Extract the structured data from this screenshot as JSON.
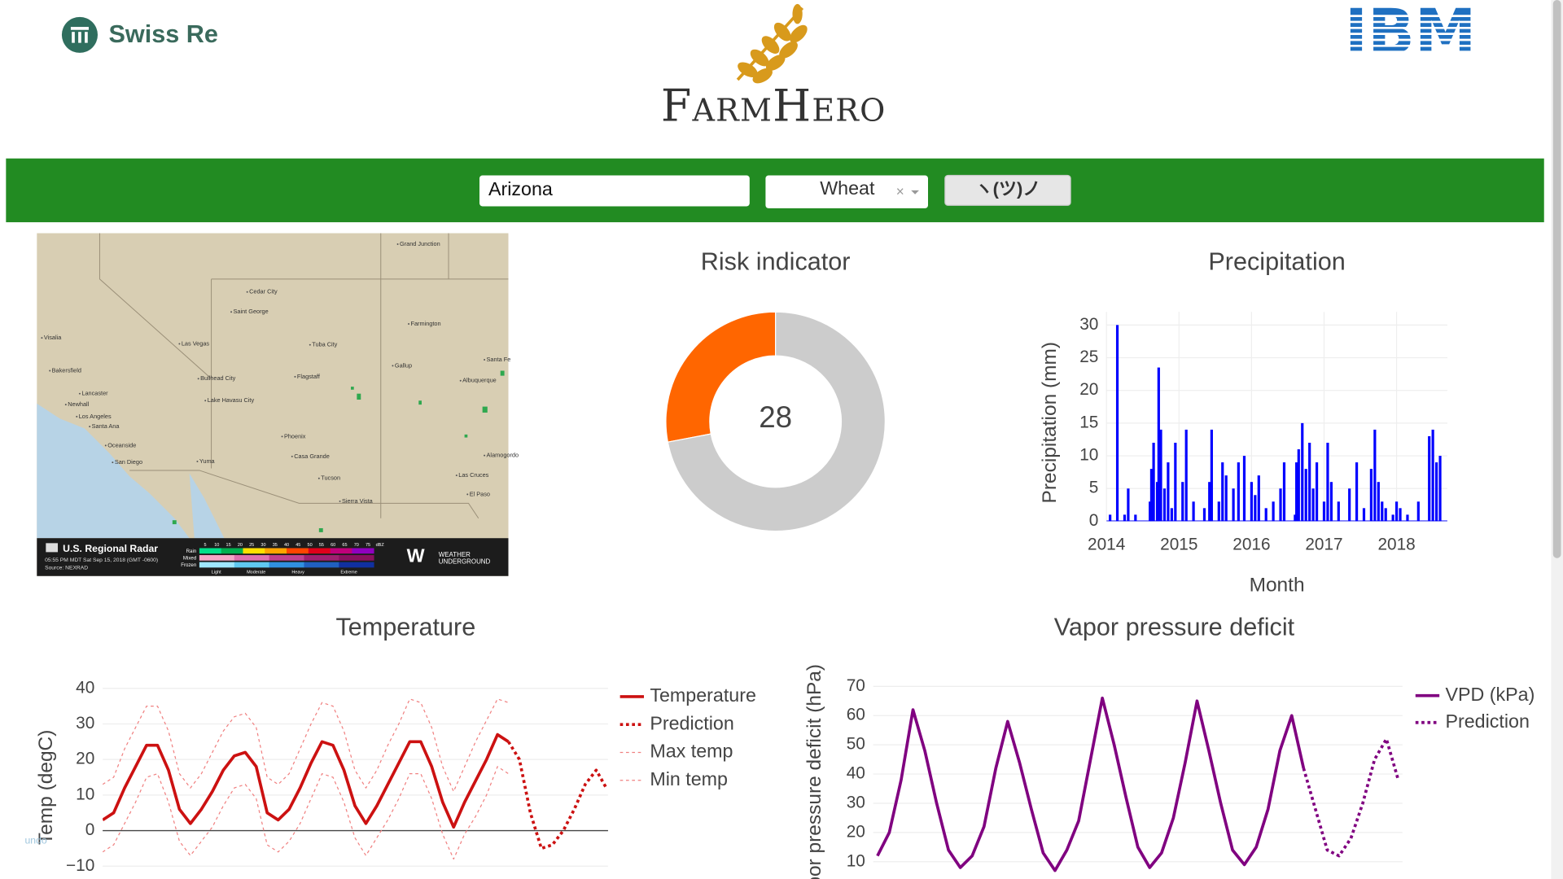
{
  "header": {
    "left_logo": "Swiss Re",
    "center_logo": "FarmHero",
    "right_logo": "IBM"
  },
  "controls": {
    "location": "Arizona",
    "crop": "Wheat",
    "clear": "×",
    "button": "ヽ(ツ)ノ"
  },
  "map": {
    "cities": [
      "Grand Junction",
      "Cedar City",
      "Saint George",
      "Farmington",
      "Las Vegas",
      "Tuba City",
      "Visalia",
      "Gallup",
      "Santa Fe",
      "Bakersfield",
      "Bullhead City",
      "Flagstaff",
      "Albuquerque",
      "Lancaster",
      "Lake Havasu City",
      "Newhall",
      "Los Angeles",
      "Santa Ana",
      "Phoenix",
      "Oceanside",
      "San Diego",
      "Yuma",
      "Casa Grande",
      "Alamogordo",
      "Tucson",
      "Las Cruces",
      "El Paso",
      "Sierra Vista"
    ],
    "legend_title": "U.S. Regional Radar",
    "timestamp": "05:55 PM MDT Sat Sep 15, 2018 (GMT -0600)",
    "source": "Source: NEXRAD",
    "rows": [
      "Rain",
      "Mixed",
      "Frozen"
    ],
    "scale": [
      5,
      10,
      15,
      20,
      25,
      30,
      35,
      40,
      45,
      50,
      55,
      60,
      65,
      70,
      75
    ],
    "scale_unit": "dBZ",
    "intensity": [
      "Light",
      "Moderate",
      "Heavy",
      "Extreme"
    ],
    "brand": [
      "WEATHER",
      "UNDERGROUND"
    ]
  },
  "undo": "undo",
  "chart_data": [
    {
      "type": "pie",
      "title": "Risk indicator",
      "values": [
        28,
        72
      ],
      "colors": [
        "#ff6600",
        "#cccccc"
      ],
      "hole": 0.6,
      "direction": "counterclockwise"
    },
    {
      "type": "bar",
      "title": "Precipitation",
      "x_label": "Month",
      "y_label": "Precipitation (mm)",
      "color": "#0000ff",
      "grid": true,
      "x": [
        2014.05,
        2014.15,
        2014.25,
        2014.3,
        2014.4,
        2014.6,
        2014.62,
        2014.65,
        2014.7,
        2014.72,
        2014.75,
        2014.8,
        2014.85,
        2014.9,
        2014.95,
        2015.05,
        2015.1,
        2015.2,
        2015.35,
        2015.42,
        2015.45,
        2015.55,
        2015.6,
        2015.65,
        2015.75,
        2015.82,
        2015.9,
        2016.0,
        2016.05,
        2016.1,
        2016.2,
        2016.3,
        2016.4,
        2016.45,
        2016.6,
        2016.62,
        2016.65,
        2016.7,
        2016.75,
        2016.8,
        2016.85,
        2016.9,
        2017.0,
        2017.05,
        2017.1,
        2017.2,
        2017.35,
        2017.45,
        2017.55,
        2017.65,
        2017.7,
        2017.75,
        2017.8,
        2017.85,
        2017.95,
        2018.0,
        2018.05,
        2018.15,
        2018.3,
        2018.45,
        2018.5,
        2018.55,
        2018.6
      ],
      "values": [
        1,
        30,
        1,
        5,
        1,
        3,
        8,
        12,
        6,
        23.5,
        14,
        5,
        9,
        2,
        12,
        6,
        14,
        3,
        2,
        6,
        14,
        3,
        9,
        7,
        5,
        9,
        10,
        6,
        4,
        7,
        2,
        3,
        5,
        9,
        1,
        9,
        11,
        15,
        8,
        12,
        5,
        9,
        3,
        12,
        6,
        3,
        5,
        9,
        2,
        8,
        14,
        6,
        3,
        2,
        1,
        3,
        2,
        1,
        3,
        13,
        14,
        9,
        10
      ],
      "xlim": [
        2014,
        2018.7
      ],
      "xticks": [
        2014,
        2015,
        2016,
        2017,
        2018
      ],
      "ylim": [
        0,
        32
      ],
      "yticks": [
        0,
        5,
        10,
        15,
        20,
        25,
        30
      ]
    },
    {
      "type": "line",
      "title": "Temperature",
      "y_label": "Temp (degC)",
      "grid": true,
      "zeroline": true,
      "xlim": [
        2014,
        2019.76
      ],
      "ylim": [
        -15,
        43
      ],
      "yticks": [
        {
          "value": -10,
          "label": "−10"
        },
        0,
        10,
        20,
        30,
        40
      ],
      "series": [
        {
          "name": "Temperature",
          "color": "#cc1111",
          "dash": "solid",
          "width": 3,
          "x": [
            2014,
            2014.125,
            2014.25,
            2014.375,
            2014.5,
            2014.625,
            2014.75,
            2014.875,
            2015,
            2015.125,
            2015.25,
            2015.375,
            2015.5,
            2015.625,
            2015.75,
            2015.875,
            2016,
            2016.125,
            2016.25,
            2016.375,
            2016.5,
            2016.625,
            2016.75,
            2016.875,
            2017,
            2017.125,
            2017.25,
            2017.375,
            2017.5,
            2017.625,
            2017.75,
            2017.875,
            2018,
            2018.125,
            2018.25,
            2018.375,
            2018.5,
            2018.625
          ],
          "values": [
            3,
            5,
            12,
            18,
            24,
            24,
            17,
            6,
            2,
            6,
            11,
            17,
            21,
            22,
            18,
            5,
            3,
            6,
            12,
            19,
            25,
            24,
            17,
            7,
            2,
            7,
            13,
            19,
            25,
            25,
            18,
            8,
            1,
            8,
            14,
            20,
            27,
            25
          ]
        },
        {
          "name": "Prediction",
          "color": "#cc1111",
          "dash": "dot",
          "width": 3,
          "x": [
            2018.625,
            2018.75,
            2018.875,
            2019,
            2019.125,
            2019.25,
            2019.375,
            2019.5,
            2019.625,
            2019.74
          ],
          "values": [
            25,
            20,
            5,
            -5,
            -4,
            0,
            6,
            13,
            17,
            12
          ]
        },
        {
          "name": "Max temp",
          "color": "#f08080",
          "dash": "dot",
          "width": 1,
          "x": [
            2014,
            2014.125,
            2014.25,
            2014.375,
            2014.5,
            2014.625,
            2014.75,
            2014.875,
            2015,
            2015.125,
            2015.25,
            2015.375,
            2015.5,
            2015.625,
            2015.75,
            2015.875,
            2016,
            2016.125,
            2016.25,
            2016.375,
            2016.5,
            2016.625,
            2016.75,
            2016.875,
            2017,
            2017.125,
            2017.25,
            2017.375,
            2017.5,
            2017.625,
            2017.75,
            2017.875,
            2018,
            2018.125,
            2018.25,
            2018.375,
            2018.5,
            2018.625
          ],
          "values": [
            13,
            15,
            23,
            29,
            35,
            35,
            28,
            16,
            12,
            16,
            22,
            28,
            32,
            33,
            29,
            15,
            13,
            16,
            23,
            30,
            36,
            35,
            28,
            17,
            12,
            17,
            24,
            30,
            37,
            36,
            29,
            18,
            11,
            18,
            25,
            31,
            37,
            36
          ]
        },
        {
          "name": "Min temp",
          "color": "#f08080",
          "dash": "dot",
          "width": 1,
          "x": [
            2014,
            2014.125,
            2014.25,
            2014.375,
            2014.5,
            2014.625,
            2014.75,
            2014.875,
            2015,
            2015.125,
            2015.25,
            2015.375,
            2015.5,
            2015.625,
            2015.75,
            2015.875,
            2016,
            2016.125,
            2016.25,
            2016.375,
            2016.5,
            2016.625,
            2016.75,
            2016.875,
            2017,
            2017.125,
            2017.25,
            2017.375,
            2017.5,
            2017.625,
            2017.75,
            2017.875,
            2018,
            2018.125,
            2018.25,
            2018.375,
            2018.5,
            2018.625
          ],
          "values": [
            -6,
            -4,
            2,
            8,
            15,
            16,
            8,
            -3,
            -7,
            -3,
            1,
            7,
            12,
            13,
            9,
            -4,
            -6,
            -3,
            2,
            9,
            16,
            15,
            8,
            -2,
            -7,
            -2,
            3,
            9,
            16,
            16,
            9,
            -1,
            -8,
            -1,
            4,
            10,
            18,
            16
          ]
        }
      ]
    },
    {
      "type": "line",
      "title": "Vapor pressure deficit",
      "y_label": "Vapor pressure deficit (hPa)",
      "grid": true,
      "xlim": [
        2014.08,
        2019.67
      ],
      "ylim": [
        0,
        74
      ],
      "yticks": [
        10,
        20,
        30,
        40,
        50,
        60,
        70
      ],
      "series": [
        {
          "name": "VPD (kPa)",
          "color": "#800080",
          "dash": "solid",
          "width": 3,
          "x": [
            2014.125,
            2014.25,
            2014.375,
            2014.5,
            2014.625,
            2014.75,
            2014.875,
            2015,
            2015.125,
            2015.25,
            2015.375,
            2015.5,
            2015.625,
            2015.75,
            2015.875,
            2016,
            2016.125,
            2016.25,
            2016.375,
            2016.5,
            2016.625,
            2016.75,
            2016.875,
            2017,
            2017.125,
            2017.25,
            2017.375,
            2017.5,
            2017.625,
            2017.75,
            2017.875,
            2018,
            2018.125,
            2018.25,
            2018.375,
            2018.5,
            2018.625
          ],
          "values": [
            12,
            20,
            38,
            62,
            48,
            30,
            14,
            8,
            12,
            22,
            42,
            58,
            44,
            28,
            13,
            7,
            14,
            24,
            45,
            66,
            50,
            32,
            15,
            8,
            13,
            25,
            44,
            65,
            48,
            30,
            14,
            9,
            15,
            28,
            48,
            60,
            42
          ]
        },
        {
          "name": "Prediction",
          "color": "#800080",
          "dash": "dot",
          "width": 3,
          "x": [
            2018.625,
            2018.75,
            2018.875,
            2019,
            2019.125,
            2019.25,
            2019.375,
            2019.5,
            2019.625
          ],
          "values": [
            42,
            28,
            14,
            12,
            18,
            30,
            45,
            52,
            38
          ]
        }
      ]
    }
  ]
}
